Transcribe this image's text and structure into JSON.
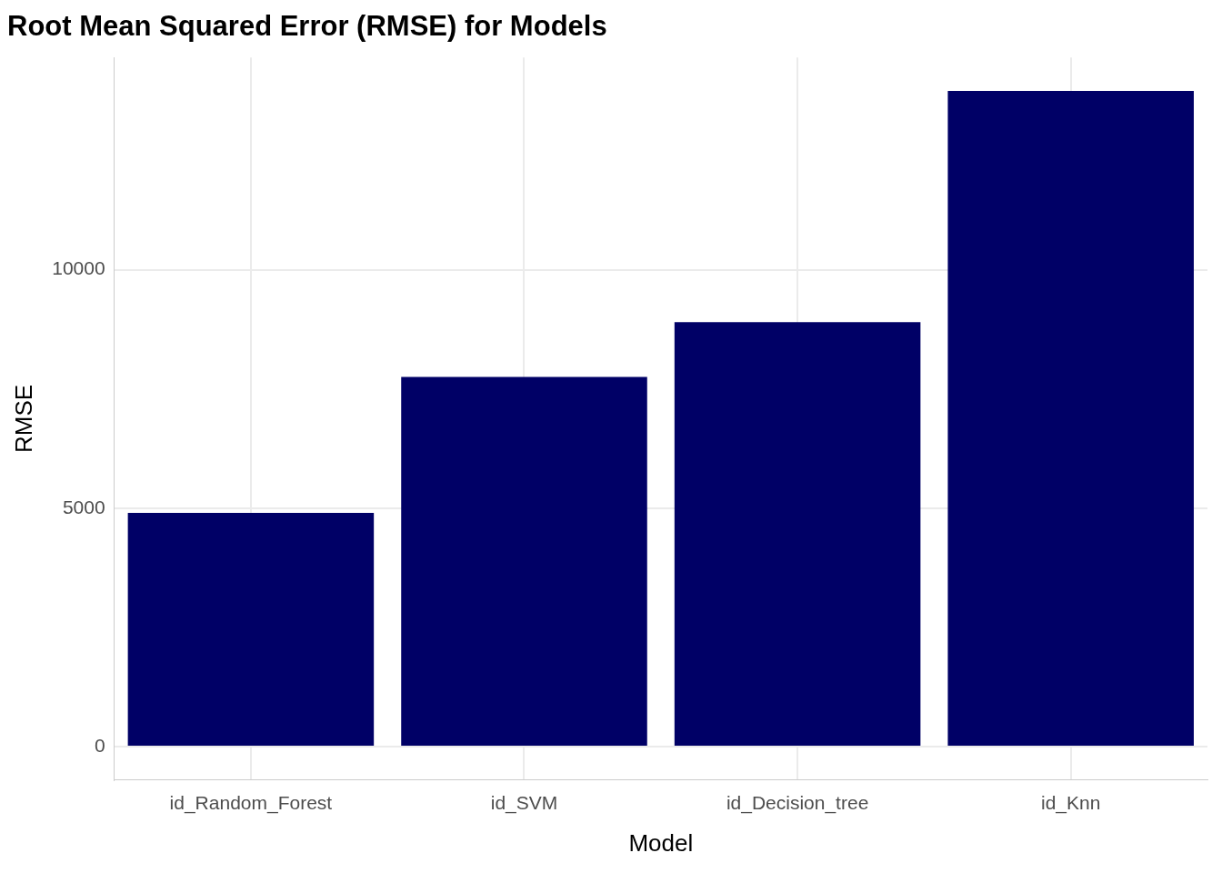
{
  "chart_data": {
    "type": "bar",
    "title": "Root Mean Squared Error (RMSE) for Models",
    "x_label": "Model",
    "y_label": "RMSE",
    "categories": [
      "id_Random_Forest",
      "id_SVM",
      "id_Decision_tree",
      "id_Knn"
    ],
    "values": [
      4900,
      7750,
      8900,
      13750
    ],
    "color": "#000066",
    "ylim": [
      -700,
      14450
    ],
    "yticks": [
      0,
      5000,
      10000
    ],
    "grid": true
  }
}
